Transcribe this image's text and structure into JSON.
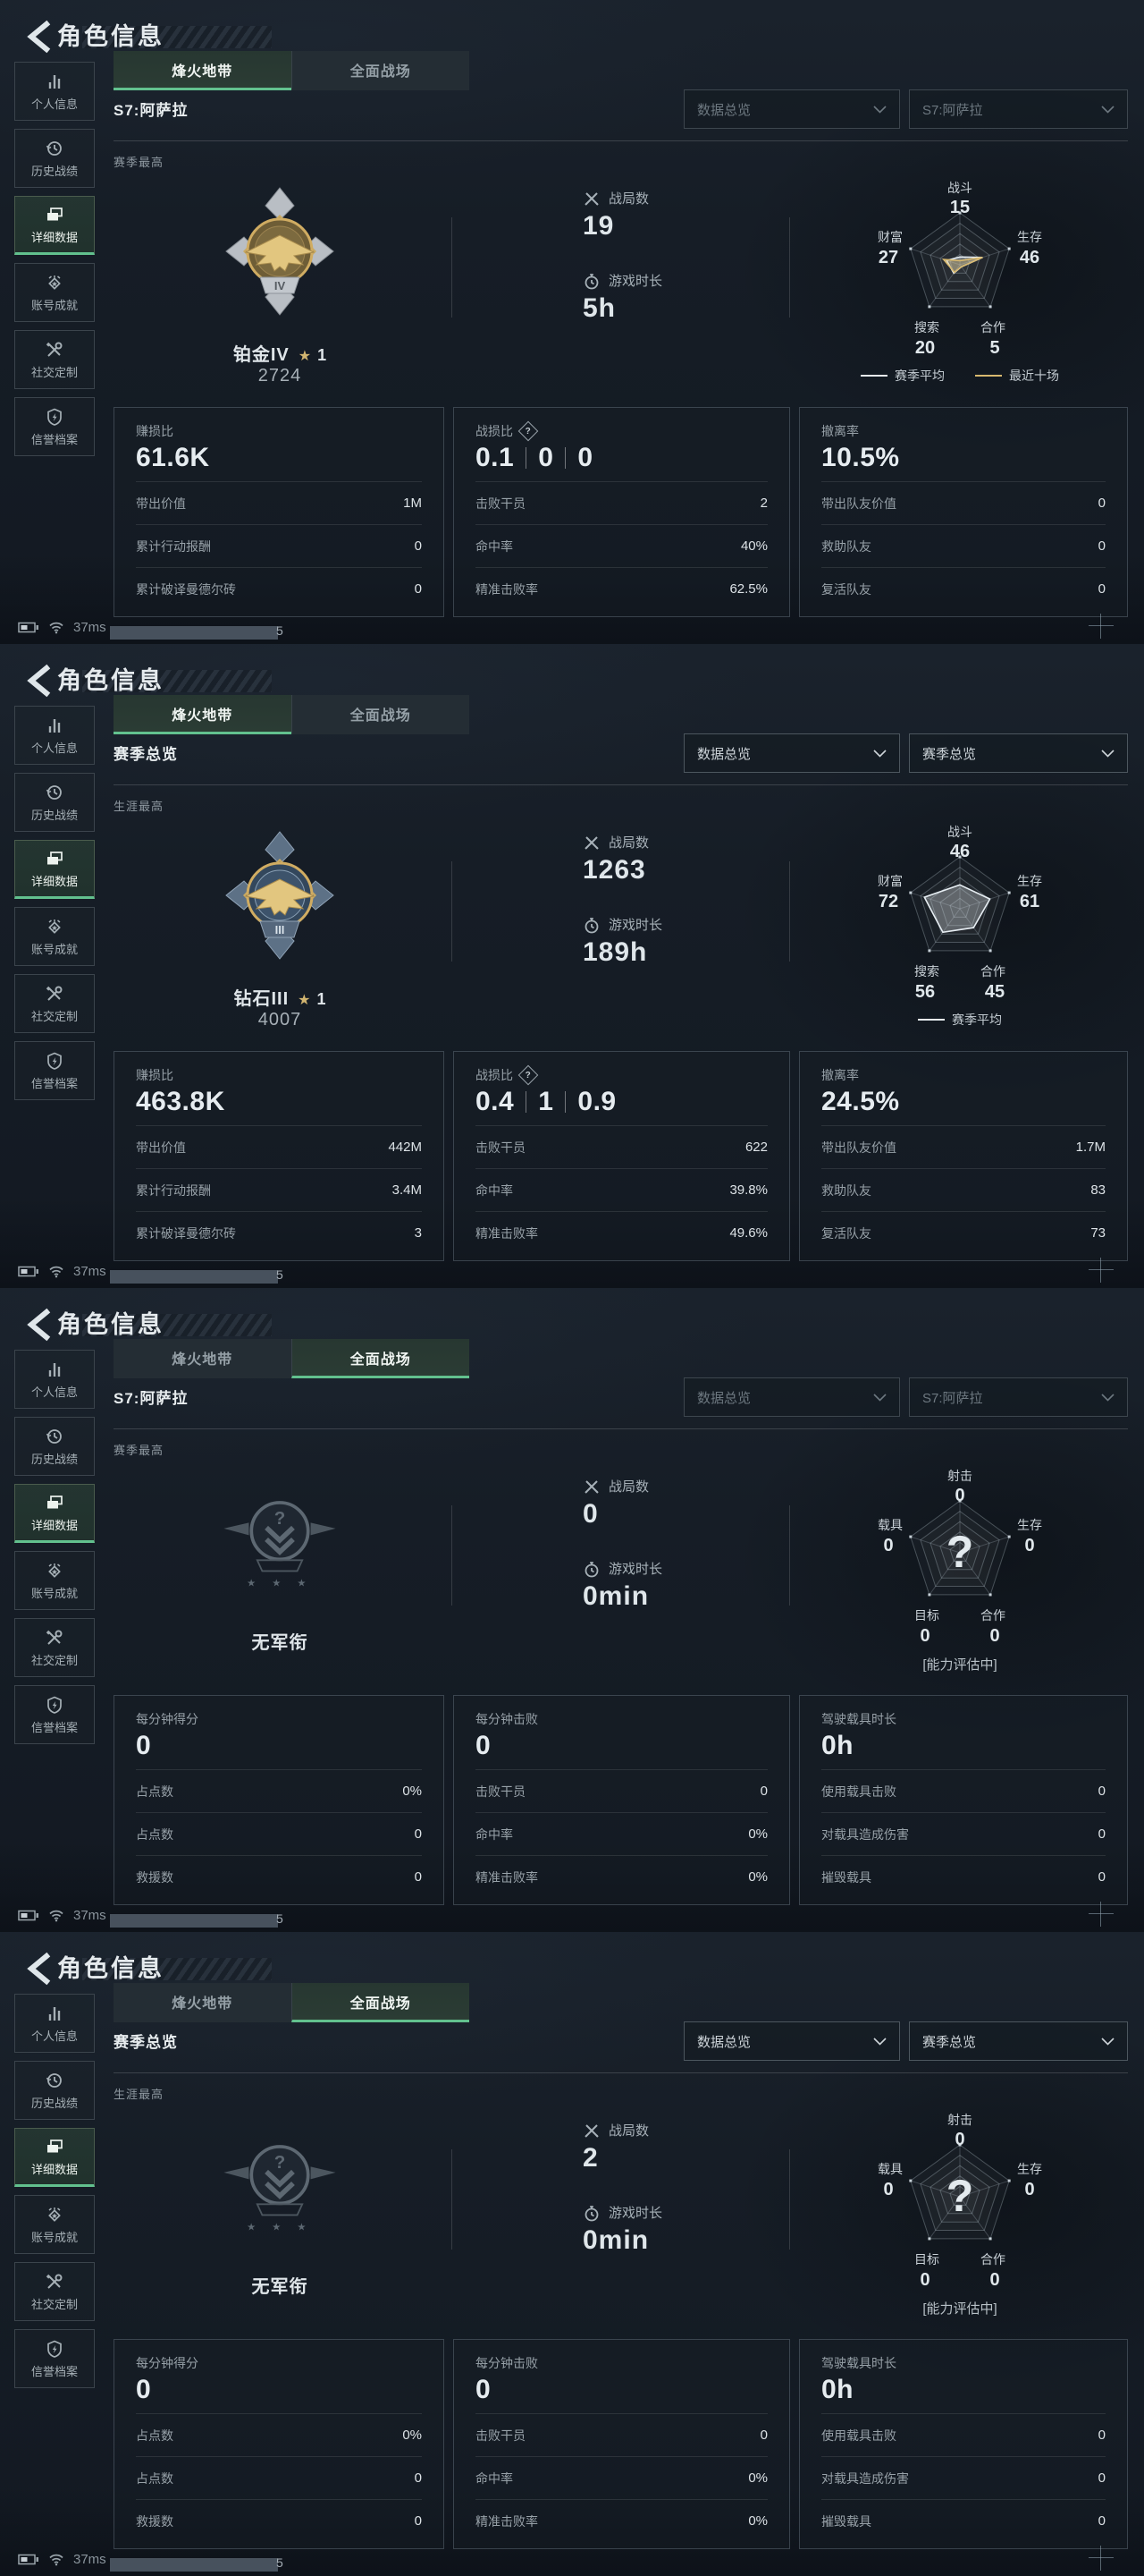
{
  "colors": {
    "accent_green": "#62c18e",
    "gold": "#d4b878",
    "radar_white": "#e7eef3",
    "radar_gold": "#d8b96f"
  },
  "panels": [
    {
      "title": "角色信息",
      "sidebar_selected": 2,
      "sidebar": [
        {
          "label": "个人信息"
        },
        {
          "label": "历史战绩"
        },
        {
          "label": "详细数据"
        },
        {
          "label": "账号成就"
        },
        {
          "label": "社交定制"
        },
        {
          "label": "信誉档案"
        }
      ],
      "tabs": [
        {
          "label": "烽火地带"
        },
        {
          "label": "全面战场"
        }
      ],
      "tab_selected": 0,
      "season_label": "S7:阿萨拉",
      "dropdowns": [
        {
          "value": "数据总览",
          "dim": true
        },
        {
          "value": "S7:阿萨拉",
          "dim": true
        }
      ],
      "section_label": "赛季最高",
      "badge": {
        "type": "platinum",
        "name": "铂金IV",
        "tier": "IV",
        "stars": "1",
        "score": "2724"
      },
      "combat": [
        {
          "label": "战局数",
          "value": "19"
        },
        {
          "label": "游戏时长",
          "value": "5h"
        }
      ],
      "radar": {
        "axes": [
          {
            "label": "战斗",
            "value": "15"
          },
          {
            "label": "生存",
            "value": "46"
          },
          {
            "label": "合作",
            "value": "5"
          },
          {
            "label": "搜索",
            "value": "20"
          },
          {
            "label": "财富",
            "value": "27"
          }
        ],
        "series": [
          {
            "name": "赛季平均",
            "color": "#e7eef3",
            "values": [
              15,
              46,
              5,
              20,
              27
            ]
          },
          {
            "name": "最近十场",
            "color": "#d8b96f",
            "values": [
              8,
              46,
              5,
              18,
              33
            ]
          }
        ],
        "caption": "",
        "center_mark": ""
      },
      "cards": [
        {
          "title": "赚损比",
          "help": false,
          "value": [
            "61.6K"
          ],
          "rows": [
            {
              "label": "带出价值",
              "value": "1M"
            },
            {
              "label": "累计行动报酬",
              "value": "0"
            },
            {
              "label": "累计破译曼德尔砖",
              "value": "0"
            }
          ]
        },
        {
          "title": "战损比",
          "help": true,
          "value": [
            "0.1",
            "0",
            "0"
          ],
          "rows": [
            {
              "label": "击败干员",
              "value": "2"
            },
            {
              "label": "命中率",
              "value": "40%"
            },
            {
              "label": "精准击败率",
              "value": "62.5%"
            }
          ]
        },
        {
          "title": "撤离率",
          "help": false,
          "value": [
            "10.5%"
          ],
          "rows": [
            {
              "label": "带出队友价值",
              "value": "0"
            },
            {
              "label": "救助队友",
              "value": "0"
            },
            {
              "label": "复活队友",
              "value": "0"
            }
          ]
        }
      ],
      "statusbar": {
        "ping": "37ms",
        "scroll": "5"
      }
    },
    {
      "title": "角色信息",
      "sidebar_selected": 2,
      "sidebar": [
        {
          "label": "个人信息"
        },
        {
          "label": "历史战绩"
        },
        {
          "label": "详细数据"
        },
        {
          "label": "账号成就"
        },
        {
          "label": "社交定制"
        },
        {
          "label": "信誉档案"
        }
      ],
      "tabs": [
        {
          "label": "烽火地带"
        },
        {
          "label": "全面战场"
        }
      ],
      "tab_selected": 0,
      "season_label": "赛季总览",
      "dropdowns": [
        {
          "value": "数据总览",
          "dim": false
        },
        {
          "value": "赛季总览",
          "dim": false
        }
      ],
      "section_label": "生涯最高",
      "badge": {
        "type": "diamond",
        "name": "钻石III",
        "tier": "III",
        "stars": "1",
        "score": "4007"
      },
      "combat": [
        {
          "label": "战局数",
          "value": "1263"
        },
        {
          "label": "游戏时长",
          "value": "189h"
        }
      ],
      "radar": {
        "axes": [
          {
            "label": "战斗",
            "value": "46"
          },
          {
            "label": "生存",
            "value": "61"
          },
          {
            "label": "合作",
            "value": "45"
          },
          {
            "label": "搜索",
            "value": "56"
          },
          {
            "label": "财富",
            "value": "72"
          }
        ],
        "series": [
          {
            "name": "赛季平均",
            "color": "#e7eef3",
            "values": [
              46,
              61,
              45,
              56,
              72
            ]
          }
        ],
        "caption": "",
        "center_mark": ""
      },
      "cards": [
        {
          "title": "赚损比",
          "help": false,
          "value": [
            "463.8K"
          ],
          "rows": [
            {
              "label": "带出价值",
              "value": "442M"
            },
            {
              "label": "累计行动报酬",
              "value": "3.4M"
            },
            {
              "label": "累计破译曼德尔砖",
              "value": "3"
            }
          ]
        },
        {
          "title": "战损比",
          "help": true,
          "value": [
            "0.4",
            "1",
            "0.9"
          ],
          "rows": [
            {
              "label": "击败干员",
              "value": "622"
            },
            {
              "label": "命中率",
              "value": "39.8%"
            },
            {
              "label": "精准击败率",
              "value": "49.6%"
            }
          ]
        },
        {
          "title": "撤离率",
          "help": false,
          "value": [
            "24.5%"
          ],
          "rows": [
            {
              "label": "带出队友价值",
              "value": "1.7M"
            },
            {
              "label": "救助队友",
              "value": "83"
            },
            {
              "label": "复活队友",
              "value": "73"
            }
          ]
        }
      ],
      "statusbar": {
        "ping": "37ms",
        "scroll": "5"
      }
    },
    {
      "title": "角色信息",
      "sidebar_selected": 2,
      "sidebar": [
        {
          "label": "个人信息"
        },
        {
          "label": "历史战绩"
        },
        {
          "label": "详细数据"
        },
        {
          "label": "账号成就"
        },
        {
          "label": "社交定制"
        },
        {
          "label": "信誉档案"
        }
      ],
      "tabs": [
        {
          "label": "烽火地带"
        },
        {
          "label": "全面战场"
        }
      ],
      "tab_selected": 1,
      "season_label": "S7:阿萨拉",
      "dropdowns": [
        {
          "value": "数据总览",
          "dim": true
        },
        {
          "value": "S7:阿萨拉",
          "dim": true
        }
      ],
      "section_label": "赛季最高",
      "badge": {
        "type": "none",
        "name": "无军衔",
        "tier": "",
        "stars": "",
        "score": ""
      },
      "combat": [
        {
          "label": "战局数",
          "value": "0"
        },
        {
          "label": "游戏时长",
          "value": "0min"
        }
      ],
      "radar": {
        "axes": [
          {
            "label": "射击",
            "value": "0"
          },
          {
            "label": "生存",
            "value": "0"
          },
          {
            "label": "合作",
            "value": "0"
          },
          {
            "label": "目标",
            "value": "0"
          },
          {
            "label": "载具",
            "value": "0"
          }
        ],
        "series": [],
        "caption": "[能力评估中]",
        "center_mark": "?"
      },
      "cards": [
        {
          "title": "每分钟得分",
          "help": false,
          "value": [
            "0"
          ],
          "rows": [
            {
              "label": "占点数",
              "value": "0%"
            },
            {
              "label": "占点数",
              "value": "0"
            },
            {
              "label": "救援数",
              "value": "0"
            }
          ]
        },
        {
          "title": "每分钟击败",
          "help": false,
          "value": [
            "0"
          ],
          "rows": [
            {
              "label": "击败干员",
              "value": "0"
            },
            {
              "label": "命中率",
              "value": "0%"
            },
            {
              "label": "精准击败率",
              "value": "0%"
            }
          ]
        },
        {
          "title": "驾驶载具时长",
          "help": false,
          "value": [
            "0h"
          ],
          "rows": [
            {
              "label": "使用载具击败",
              "value": "0"
            },
            {
              "label": "对载具造成伤害",
              "value": "0"
            },
            {
              "label": "摧毁载具",
              "value": "0"
            }
          ]
        }
      ],
      "statusbar": {
        "ping": "37ms",
        "scroll": "5"
      }
    },
    {
      "title": "角色信息",
      "sidebar_selected": 2,
      "sidebar": [
        {
          "label": "个人信息"
        },
        {
          "label": "历史战绩"
        },
        {
          "label": "详细数据"
        },
        {
          "label": "账号成就"
        },
        {
          "label": "社交定制"
        },
        {
          "label": "信誉档案"
        }
      ],
      "tabs": [
        {
          "label": "烽火地带"
        },
        {
          "label": "全面战场"
        }
      ],
      "tab_selected": 1,
      "season_label": "赛季总览",
      "dropdowns": [
        {
          "value": "数据总览",
          "dim": false
        },
        {
          "value": "赛季总览",
          "dim": false
        }
      ],
      "section_label": "生涯最高",
      "badge": {
        "type": "none",
        "name": "无军衔",
        "tier": "",
        "stars": "",
        "score": ""
      },
      "combat": [
        {
          "label": "战局数",
          "value": "2"
        },
        {
          "label": "游戏时长",
          "value": "0min"
        }
      ],
      "radar": {
        "axes": [
          {
            "label": "射击",
            "value": "0"
          },
          {
            "label": "生存",
            "value": "0"
          },
          {
            "label": "合作",
            "value": "0"
          },
          {
            "label": "目标",
            "value": "0"
          },
          {
            "label": "载具",
            "value": "0"
          }
        ],
        "series": [],
        "caption": "[能力评估中]",
        "center_mark": "?"
      },
      "cards": [
        {
          "title": "每分钟得分",
          "help": false,
          "value": [
            "0"
          ],
          "rows": [
            {
              "label": "占点数",
              "value": "0%"
            },
            {
              "label": "占点数",
              "value": "0"
            },
            {
              "label": "救援数",
              "value": "0"
            }
          ]
        },
        {
          "title": "每分钟击败",
          "help": false,
          "value": [
            "0"
          ],
          "rows": [
            {
              "label": "击败干员",
              "value": "0"
            },
            {
              "label": "命中率",
              "value": "0%"
            },
            {
              "label": "精准击败率",
              "value": "0%"
            }
          ]
        },
        {
          "title": "驾驶载具时长",
          "help": false,
          "value": [
            "0h"
          ],
          "rows": [
            {
              "label": "使用载具击败",
              "value": "0"
            },
            {
              "label": "对载具造成伤害",
              "value": "0"
            },
            {
              "label": "摧毁载具",
              "value": "0"
            }
          ]
        }
      ],
      "statusbar": {
        "ping": "37ms",
        "scroll": "5"
      }
    }
  ]
}
